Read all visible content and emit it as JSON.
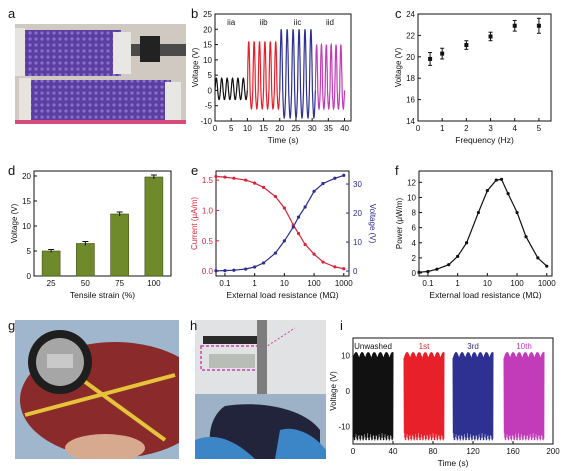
{
  "panel_letters": [
    "a",
    "b",
    "c",
    "d",
    "e",
    "f",
    "g",
    "h",
    "i"
  ],
  "colors": {
    "black": "#111111",
    "red": "#e8202a",
    "blue": "#2e3192",
    "magenta": "#c23bb8",
    "olive": "#6e8a2a",
    "current_red": "#d9243a",
    "voltage_blue": "#2b2d8f"
  },
  "chart_data": [
    {
      "panel": "b",
      "type": "line",
      "xlabel": "Time (s)",
      "ylabel": "Voltage (V)",
      "xlim": [
        0,
        42
      ],
      "ylim": [
        -10,
        25
      ],
      "xticks": [
        0,
        5,
        10,
        15,
        20,
        25,
        30,
        35,
        40
      ],
      "yticks": [
        -10,
        -5,
        0,
        5,
        10,
        15,
        20,
        25
      ],
      "series": [
        {
          "name": "iia",
          "x_range": [
            0,
            10
          ],
          "amp_max": 4,
          "amp_min": -3,
          "cycles": 6
        },
        {
          "name": "iib",
          "x_range": [
            10,
            20
          ],
          "amp_max": 16,
          "amp_min": -6,
          "cycles": 6
        },
        {
          "name": "iic",
          "x_range": [
            20,
            31
          ],
          "amp_max": 20,
          "amp_min": -9,
          "cycles": 6
        },
        {
          "name": "iid",
          "x_range": [
            31,
            40
          ],
          "amp_max": 15,
          "amp_min": -6,
          "cycles": 6
        }
      ]
    },
    {
      "panel": "c",
      "type": "scatter",
      "xlabel": "Frequency (Hz)",
      "ylabel": "Voltage (V)",
      "xlim": [
        0,
        5.5
      ],
      "ylim": [
        14,
        24
      ],
      "xticks": [
        0,
        1,
        2,
        3,
        4,
        5
      ],
      "yticks": [
        14,
        16,
        18,
        20,
        22,
        24
      ],
      "x": [
        0.5,
        1,
        2,
        3,
        4,
        5
      ],
      "y": [
        19.8,
        20.3,
        21.1,
        21.9,
        22.9,
        22.9
      ],
      "err": [
        0.6,
        0.5,
        0.4,
        0.4,
        0.5,
        0.7
      ]
    },
    {
      "panel": "d",
      "type": "bar",
      "xlabel": "Tensile strain (%)",
      "ylabel": "Voltage (V)",
      "ylim": [
        0,
        21
      ],
      "yticks": [
        0,
        5,
        10,
        15,
        20
      ],
      "categories": [
        "25",
        "50",
        "75",
        "100"
      ],
      "values": [
        5.0,
        6.5,
        12.4,
        19.8
      ],
      "err": [
        0.3,
        0.4,
        0.4,
        0.4
      ]
    },
    {
      "panel": "e",
      "type": "line",
      "xlabel": "External load resistance (MΩ)",
      "ylabel_left": "Current (μA/m)",
      "ylabel_right": "Voltage (V)",
      "xscale": "log",
      "xlim": [
        0.05,
        1500
      ],
      "xticks": [
        0.1,
        1,
        10,
        100,
        1000
      ],
      "xtick_labels": [
        "0.1",
        "1",
        "10",
        "100",
        "1000"
      ],
      "ylim_left": [
        -0.08,
        1.65
      ],
      "ylim_right": [
        -1.7,
        34.5
      ],
      "yticks_left": [
        0.0,
        0.5,
        1.0,
        1.5
      ],
      "ytick_labels_left": [
        "0.0",
        "0.5",
        "1.0",
        "1.5"
      ],
      "yticks_right": [
        0,
        10,
        20,
        30
      ],
      "x": [
        0.05,
        0.1,
        0.2,
        0.5,
        1,
        2,
        5,
        10,
        20,
        30,
        50,
        100,
        200,
        500,
        1000
      ],
      "current": [
        1.56,
        1.55,
        1.53,
        1.5,
        1.45,
        1.38,
        1.23,
        1.04,
        0.76,
        0.62,
        0.44,
        0.28,
        0.15,
        0.07,
        0.04
      ],
      "voltage": [
        0.1,
        0.15,
        0.3,
        0.7,
        1.4,
        2.8,
        6.2,
        10.4,
        15.2,
        18.6,
        22.1,
        27.5,
        30.2,
        32.0,
        33.0
      ]
    },
    {
      "panel": "f",
      "type": "line",
      "xlabel": "External load resistance (MΩ)",
      "ylabel": "Power (μW/m)",
      "xscale": "log",
      "xlim": [
        0.05,
        1500
      ],
      "xticks": [
        0.1,
        1,
        10,
        100,
        1000
      ],
      "xtick_labels": [
        "0.1",
        "1",
        "10",
        "100",
        "1000"
      ],
      "ylim": [
        -0.4,
        13.5
      ],
      "yticks": [
        0,
        2,
        4,
        6,
        8,
        10,
        12
      ],
      "x": [
        0.05,
        0.1,
        0.2,
        0.5,
        1,
        2,
        5,
        10,
        20,
        30,
        50,
        100,
        200,
        500,
        1000
      ],
      "y": [
        0.1,
        0.2,
        0.5,
        1.1,
        2.2,
        4.0,
        8.0,
        10.9,
        12.3,
        12.4,
        10.5,
        8.0,
        4.8,
        2.0,
        0.9
      ]
    },
    {
      "panel": "i",
      "type": "area",
      "xlabel": "Time (s)",
      "ylabel": "Voltage (V)",
      "xlim": [
        0,
        200
      ],
      "ylim": [
        -15,
        15
      ],
      "xticks": [
        0,
        40,
        80,
        120,
        160,
        200
      ],
      "yticks": [
        -10,
        0,
        10
      ],
      "series": [
        {
          "name": "Unwashed",
          "x_range": [
            0,
            40
          ],
          "max": 11,
          "min": -14
        },
        {
          "name": "1st",
          "x_range": [
            51,
            91
          ],
          "max": 11,
          "min": -14
        },
        {
          "name": "3rd",
          "x_range": [
            100,
            140
          ],
          "max": 11,
          "min": -14
        },
        {
          "name": "10th",
          "x_range": [
            151,
            191
          ],
          "max": 11,
          "min": -14
        }
      ]
    }
  ]
}
